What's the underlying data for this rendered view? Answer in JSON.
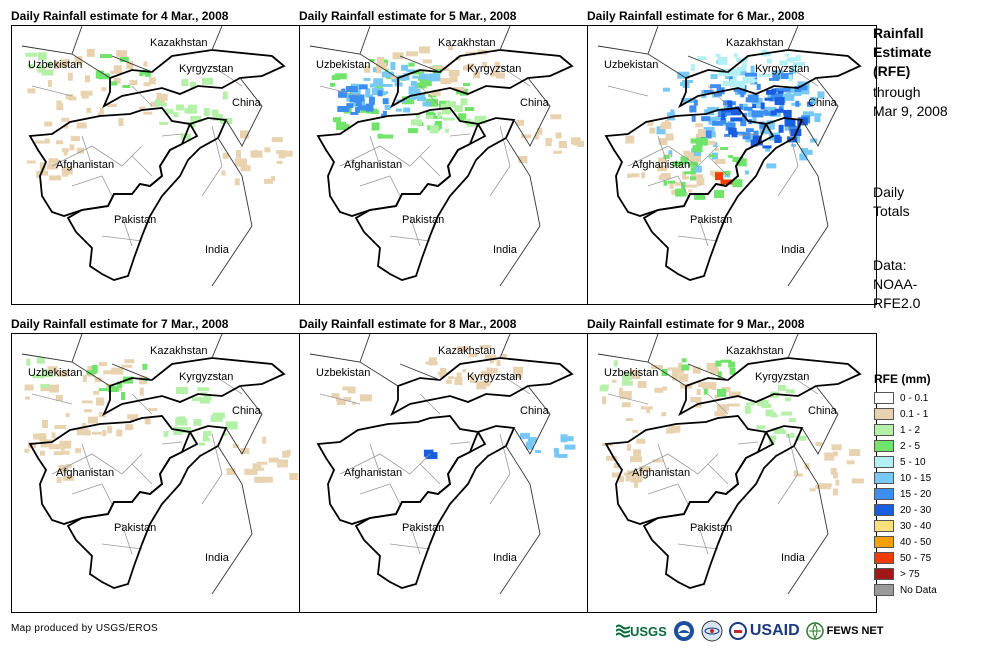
{
  "panels": [
    {
      "title": "Daily Rainfall estimate for 4 Mar., 2008",
      "rain_level": "light"
    },
    {
      "title": "Daily Rainfall estimate for 5 Mar., 2008",
      "rain_level": "moderate"
    },
    {
      "title": "Daily Rainfall estimate for 6 Mar., 2008",
      "rain_level": "heavy"
    },
    {
      "title": "Daily Rainfall estimate for 7 Mar., 2008",
      "rain_level": "light"
    },
    {
      "title": "Daily Rainfall estimate for 8 Mar., 2008",
      "rain_level": "sparse"
    },
    {
      "title": "Daily Rainfall estimate for 9 Mar., 2008",
      "rain_level": "light"
    }
  ],
  "map_labels": {
    "kazakhstan": "Kazakhstan",
    "uzbekistan": "Uzbekistan",
    "kyrgyzstan": "Kyrgyzstan",
    "china": "China",
    "afghanistan": "Afghanistan",
    "pakistan": "Pakistan",
    "india": "India"
  },
  "side": {
    "title_line1": "Rainfall",
    "title_line2": "Estimate",
    "title_line3": "(RFE)",
    "through": "through",
    "date": "Mar 9, 2008",
    "daily1": "Daily",
    "daily2": "Totals",
    "data1": "Data:",
    "data2": "NOAA-",
    "data3": "RFE2.0"
  },
  "legend": {
    "title": "RFE (mm)",
    "items": [
      {
        "label": "0 - 0.1",
        "color": "#ffffff"
      },
      {
        "label": "0.1 - 1",
        "color": "#e8d2b0"
      },
      {
        "label": "1 - 2",
        "color": "#b4f0a8"
      },
      {
        "label": "2 - 5",
        "color": "#6fe36a"
      },
      {
        "label": "5 - 10",
        "color": "#b3f0f5"
      },
      {
        "label": "10 - 15",
        "color": "#78c8f5"
      },
      {
        "label": "15 - 20",
        "color": "#3c8ef0"
      },
      {
        "label": "20 - 30",
        "color": "#1a5ee0"
      },
      {
        "label": "30 - 40",
        "color": "#f8e07c"
      },
      {
        "label": "40 - 50",
        "color": "#f5a000"
      },
      {
        "label": "50 - 75",
        "color": "#f03c00"
      },
      {
        "label": "> 75",
        "color": "#a01818"
      },
      {
        "label": "No Data",
        "color": "#9a9a9a"
      }
    ]
  },
  "footer": "Map produced by USGS/EROS",
  "logos": {
    "usgs": "USGS",
    "usaid": "USAID",
    "fewsnet": "FEWS NET"
  }
}
